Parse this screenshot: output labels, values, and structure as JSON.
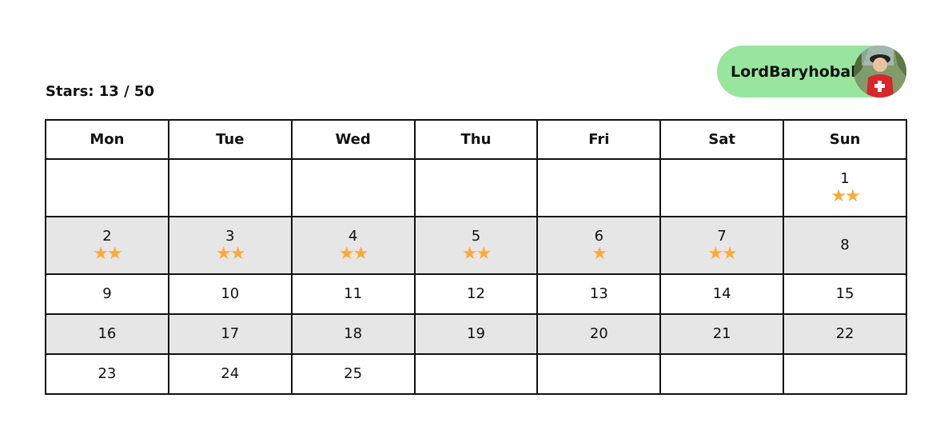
{
  "header": {
    "stars_label": "Stars: 13 / 50"
  },
  "user": {
    "name": "LordBaryhobal",
    "pill_color": "#98E69E"
  },
  "calendar": {
    "weekdays": [
      "Mon",
      "Tue",
      "Wed",
      "Thu",
      "Fri",
      "Sat",
      "Sun"
    ],
    "star_color": "#FFAA33",
    "star_icon": "star-icon",
    "weeks": [
      [
        null,
        null,
        null,
        null,
        null,
        null,
        {
          "day": "1",
          "stars": 2
        }
      ],
      [
        {
          "day": "2",
          "stars": 2
        },
        {
          "day": "3",
          "stars": 2
        },
        {
          "day": "4",
          "stars": 2
        },
        {
          "day": "5",
          "stars": 2
        },
        {
          "day": "6",
          "stars": 1
        },
        {
          "day": "7",
          "stars": 2
        },
        {
          "day": "8",
          "stars": 0
        }
      ],
      [
        {
          "day": "9",
          "stars": 0
        },
        {
          "day": "10",
          "stars": 0
        },
        {
          "day": "11",
          "stars": 0
        },
        {
          "day": "12",
          "stars": 0
        },
        {
          "day": "13",
          "stars": 0
        },
        {
          "day": "14",
          "stars": 0
        },
        {
          "day": "15",
          "stars": 0
        }
      ],
      [
        {
          "day": "16",
          "stars": 0
        },
        {
          "day": "17",
          "stars": 0
        },
        {
          "day": "18",
          "stars": 0
        },
        {
          "day": "19",
          "stars": 0
        },
        {
          "day": "20",
          "stars": 0
        },
        {
          "day": "21",
          "stars": 0
        },
        {
          "day": "22",
          "stars": 0
        }
      ],
      [
        {
          "day": "23",
          "stars": 0
        },
        {
          "day": "24",
          "stars": 0
        },
        {
          "day": "25",
          "stars": 0
        },
        null,
        null,
        null,
        null
      ]
    ]
  }
}
